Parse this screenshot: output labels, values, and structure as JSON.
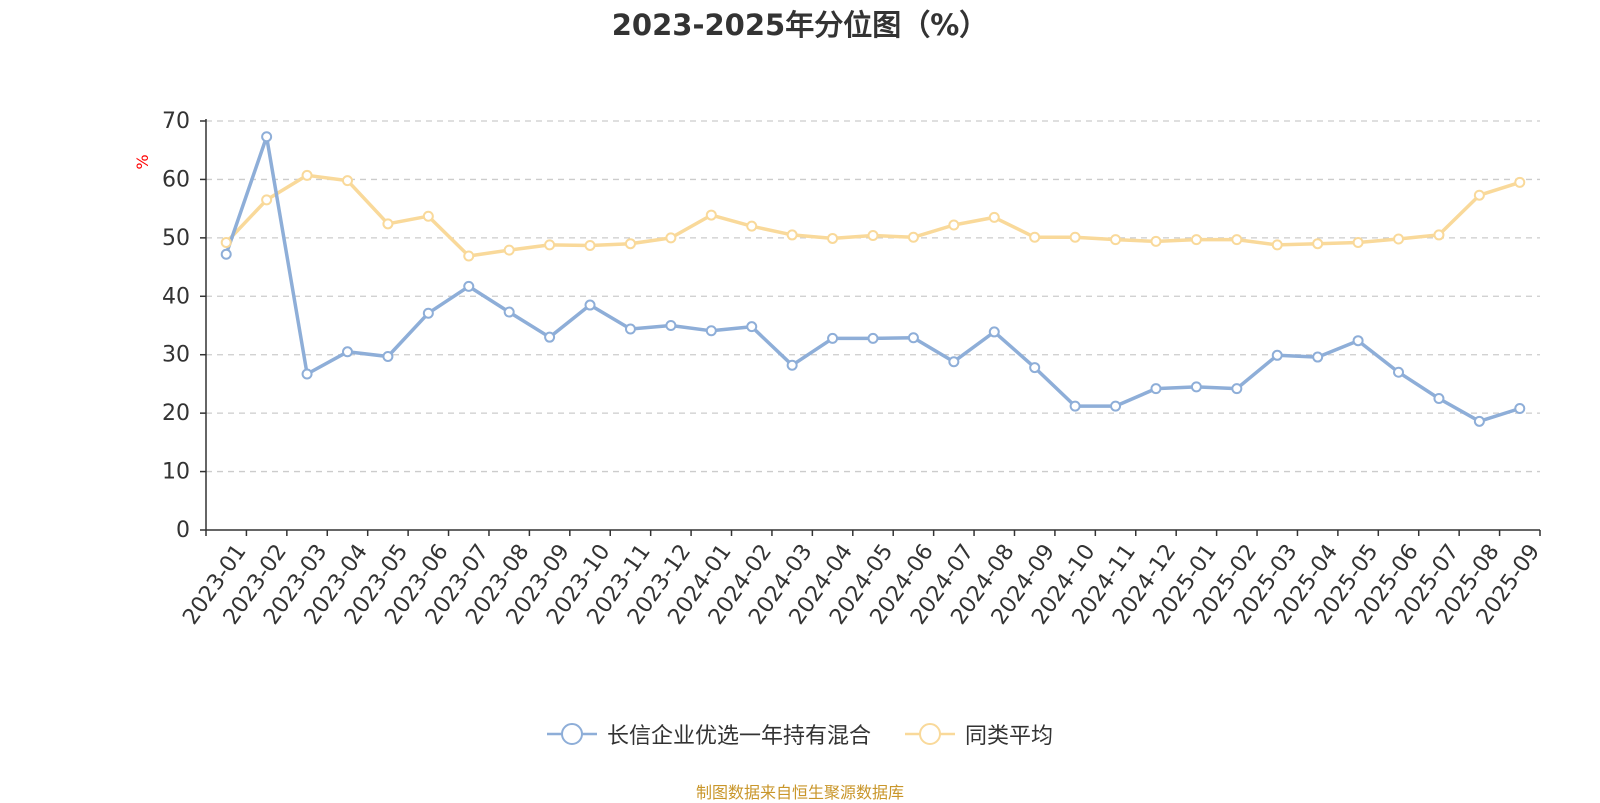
{
  "chart_data": {
    "type": "line",
    "title": "2023-2025年分位图（%）",
    "ylabel": "%",
    "ylim": [
      0,
      70
    ],
    "yticks": [
      0,
      10,
      20,
      30,
      40,
      50,
      60,
      70
    ],
    "grid": true,
    "legend_placement": "bottom",
    "categories": [
      "2023-01",
      "2023-02",
      "2023-03",
      "2023-04",
      "2023-05",
      "2023-06",
      "2023-07",
      "2023-08",
      "2023-09",
      "2023-10",
      "2023-11",
      "2023-12",
      "2024-01",
      "2024-02",
      "2024-03",
      "2024-04",
      "2024-05",
      "2024-06",
      "2024-07",
      "2024-08",
      "2024-09",
      "2024-10",
      "2024-11",
      "2024-12",
      "2025-01",
      "2025-02",
      "2025-03",
      "2025-04",
      "2025-05",
      "2025-06",
      "2025-07",
      "2025-08",
      "2025-09"
    ],
    "series": [
      {
        "name": "长信企业优选一年持有混合",
        "color": "#8eaed8",
        "values": [
          47.2,
          67.3,
          26.7,
          30.5,
          29.7,
          37.1,
          41.7,
          37.3,
          33.0,
          38.5,
          34.4,
          35.0,
          34.1,
          34.8,
          28.2,
          32.8,
          32.8,
          32.9,
          28.8,
          33.9,
          27.8,
          21.2,
          21.2,
          24.2,
          24.5,
          24.2,
          29.9,
          29.6,
          32.4,
          27.0,
          22.5,
          18.6,
          20.8
        ]
      },
      {
        "name": "同类平均",
        "color": "#f9d99a",
        "values": [
          49.2,
          56.5,
          60.7,
          59.8,
          52.4,
          53.7,
          46.9,
          47.9,
          48.8,
          48.7,
          49.0,
          50.0,
          53.9,
          52.0,
          50.5,
          49.9,
          50.4,
          50.1,
          52.2,
          53.5,
          50.1,
          50.1,
          49.7,
          49.4,
          49.7,
          49.7,
          48.8,
          49.0,
          49.2,
          49.8,
          50.5,
          57.3,
          59.5
        ]
      }
    ]
  },
  "source_note": "制图数据来自恒生聚源数据库"
}
